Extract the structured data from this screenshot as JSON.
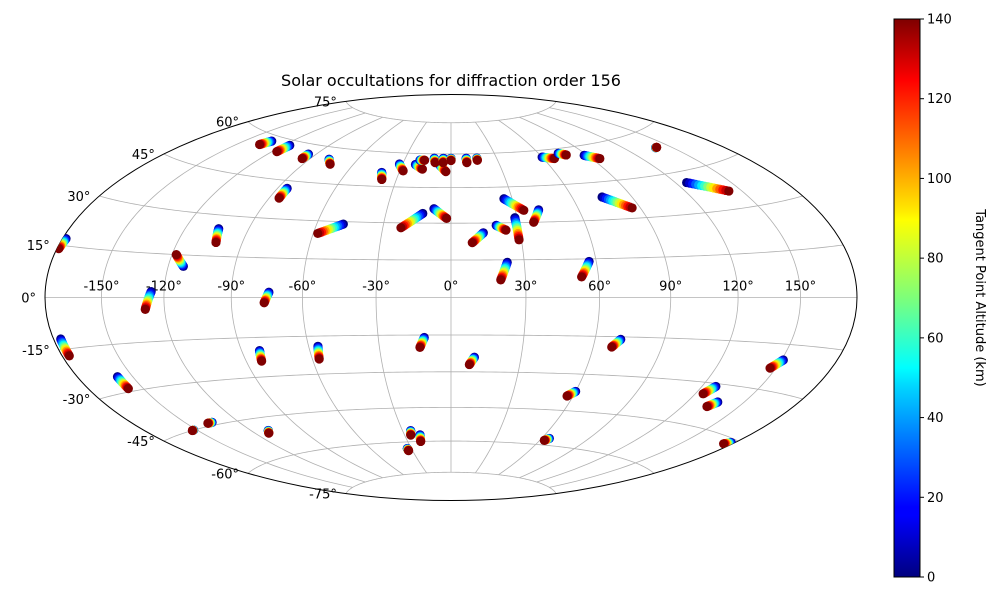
{
  "chart_data": {
    "type": "scatter",
    "projection": "hammer",
    "title": "Solar occultations for diffraction order 156",
    "lon_tick_labels": [
      "-150°",
      "-120°",
      "-90°",
      "-60°",
      "-30°",
      "0°",
      "30°",
      "60°",
      "90°",
      "120°",
      "150°"
    ],
    "lon_ticks": [
      -150,
      -120,
      -90,
      -60,
      -30,
      0,
      30,
      60,
      90,
      120,
      150
    ],
    "lat_tick_labels": [
      "-75°",
      "-60°",
      "-45°",
      "-30°",
      "-15°",
      "0°",
      "15°",
      "30°",
      "45°",
      "60°",
      "75°"
    ],
    "lat_ticks": [
      -75,
      -60,
      -45,
      -30,
      -15,
      0,
      15,
      30,
      45,
      60,
      75
    ],
    "grid": true,
    "colorbar": {
      "label": "Tangent Point Altitude (km)",
      "min": 0,
      "max": 140,
      "tick_labels": [
        "0",
        "20",
        "40",
        "60",
        "80",
        "100",
        "120",
        "140"
      ],
      "ticks": [
        0,
        20,
        40,
        60,
        80,
        100,
        120,
        140
      ],
      "colormap": "jet"
    },
    "series_note": "Each track runs from tangent altitude 0 km (first point) to 140 km (last point)",
    "tracks": [
      [
        [
          -104,
          25
        ],
        [
          -102,
          20
        ]
      ],
      [
        [
          -113,
          11
        ],
        [
          -118,
          15
        ]
      ],
      [
        [
          -126,
          2
        ],
        [
          -129,
          -4
        ]
      ],
      [
        [
          -178,
          17
        ],
        [
          -179,
          14
        ]
      ],
      [
        [
          -74,
          2
        ],
        [
          -76,
          -2
        ]
      ],
      [
        [
          -48,
          29
        ],
        [
          -58,
          25
        ]
      ],
      [
        [
          -85,
          42
        ],
        [
          -85,
          38
        ]
      ],
      [
        [
          -13,
          34
        ],
        [
          -22,
          28
        ]
      ],
      [
        [
          -8,
          36
        ],
        [
          -2,
          32
        ]
      ],
      [
        [
          14,
          26
        ],
        [
          9,
          22
        ]
      ],
      [
        [
          26,
          40
        ],
        [
          34,
          35
        ]
      ],
      [
        [
          29,
          32
        ],
        [
          29,
          23
        ]
      ],
      [
        [
          41,
          35
        ],
        [
          37,
          30
        ]
      ],
      [
        [
          23,
          14
        ],
        [
          20,
          7
        ]
      ],
      [
        [
          57,
          14
        ],
        [
          53,
          8
        ]
      ],
      [
        [
          20,
          29
        ],
        [
          24,
          27
        ]
      ],
      [
        [
          75,
          39
        ],
        [
          86,
          34
        ]
      ],
      [
        [
          126,
          41
        ],
        [
          143,
          36
        ]
      ],
      [
        [
          -133,
          58
        ],
        [
          -136,
          56
        ]
      ],
      [
        [
          -116,
          58
        ],
        [
          -117,
          55
        ]
      ],
      [
        [
          -95,
          56
        ],
        [
          -95,
          54
        ]
      ],
      [
        [
          -78,
          55
        ],
        [
          -74,
          53
        ]
      ],
      [
        [
          -32,
          55
        ],
        [
          -28,
          52
        ]
      ],
      [
        [
          -40,
          51
        ],
        [
          -38,
          48
        ]
      ],
      [
        [
          -7,
          55
        ],
        [
          -3,
          52
        ]
      ],
      [
        [
          -22,
          55
        ],
        [
          -17,
          53
        ]
      ],
      [
        [
          -11,
          58
        ],
        [
          -10,
          56
        ]
      ],
      [
        [
          -20,
          57
        ],
        [
          -17,
          57
        ]
      ],
      [
        [
          -5,
          58
        ],
        [
          -5,
          56
        ]
      ],
      [
        [
          0,
          58
        ],
        [
          0,
          57
        ]
      ],
      [
        [
          10,
          58
        ],
        [
          10,
          56
        ]
      ],
      [
        [
          17,
          58
        ],
        [
          17,
          57
        ]
      ],
      [
        [
          60,
          57
        ],
        [
          67,
          56
        ]
      ],
      [
        [
          73,
          58
        ],
        [
          77,
          57
        ]
      ],
      [
        [
          88,
          56
        ],
        [
          95,
          54
        ]
      ],
      [
        [
          140,
          54
        ],
        [
          141,
          54
        ]
      ],
      [
        [
          -176,
          -12
        ],
        [
          -176,
          -17
        ]
      ],
      [
        [
          -158,
          -25
        ],
        [
          -158,
          -29
        ]
      ],
      [
        [
          -135,
          -44
        ],
        [
          -138,
          -44
        ]
      ],
      [
        [
          -82,
          -20
        ],
        [
          -83,
          -24
        ]
      ],
      [
        [
          -56,
          -19
        ],
        [
          -57,
          -24
        ]
      ],
      [
        [
          -11,
          -16
        ],
        [
          -13,
          -20
        ]
      ],
      [
        [
          10,
          -24
        ],
        [
          8,
          -27
        ]
      ],
      [
        [
          71,
          -16
        ],
        [
          68,
          -19
        ]
      ],
      [
        [
          60,
          -37
        ],
        [
          57,
          -39
        ]
      ],
      [
        [
          65,
          -57
        ],
        [
          63,
          -58
        ]
      ],
      [
        [
          151,
          -20
        ],
        [
          147,
          -23
        ]
      ],
      [
        [
          127,
          -31
        ],
        [
          124,
          -34
        ]
      ],
      [
        [
          136,
          -36
        ],
        [
          133,
          -38
        ]
      ],
      [
        [
          178,
          -46
        ],
        [
          175,
          -47
        ]
      ],
      [
        [
          -152,
          -45
        ],
        [
          -153,
          -45
        ]
      ],
      [
        [
          -110,
          -50
        ],
        [
          -112,
          -51
        ]
      ],
      [
        [
          -25,
          -55
        ],
        [
          -26,
          -57
        ]
      ],
      [
        [
          -20,
          -57
        ],
        [
          -21,
          -60
        ]
      ],
      [
        [
          -33,
          -63
        ],
        [
          -33,
          -64
        ]
      ]
    ]
  }
}
